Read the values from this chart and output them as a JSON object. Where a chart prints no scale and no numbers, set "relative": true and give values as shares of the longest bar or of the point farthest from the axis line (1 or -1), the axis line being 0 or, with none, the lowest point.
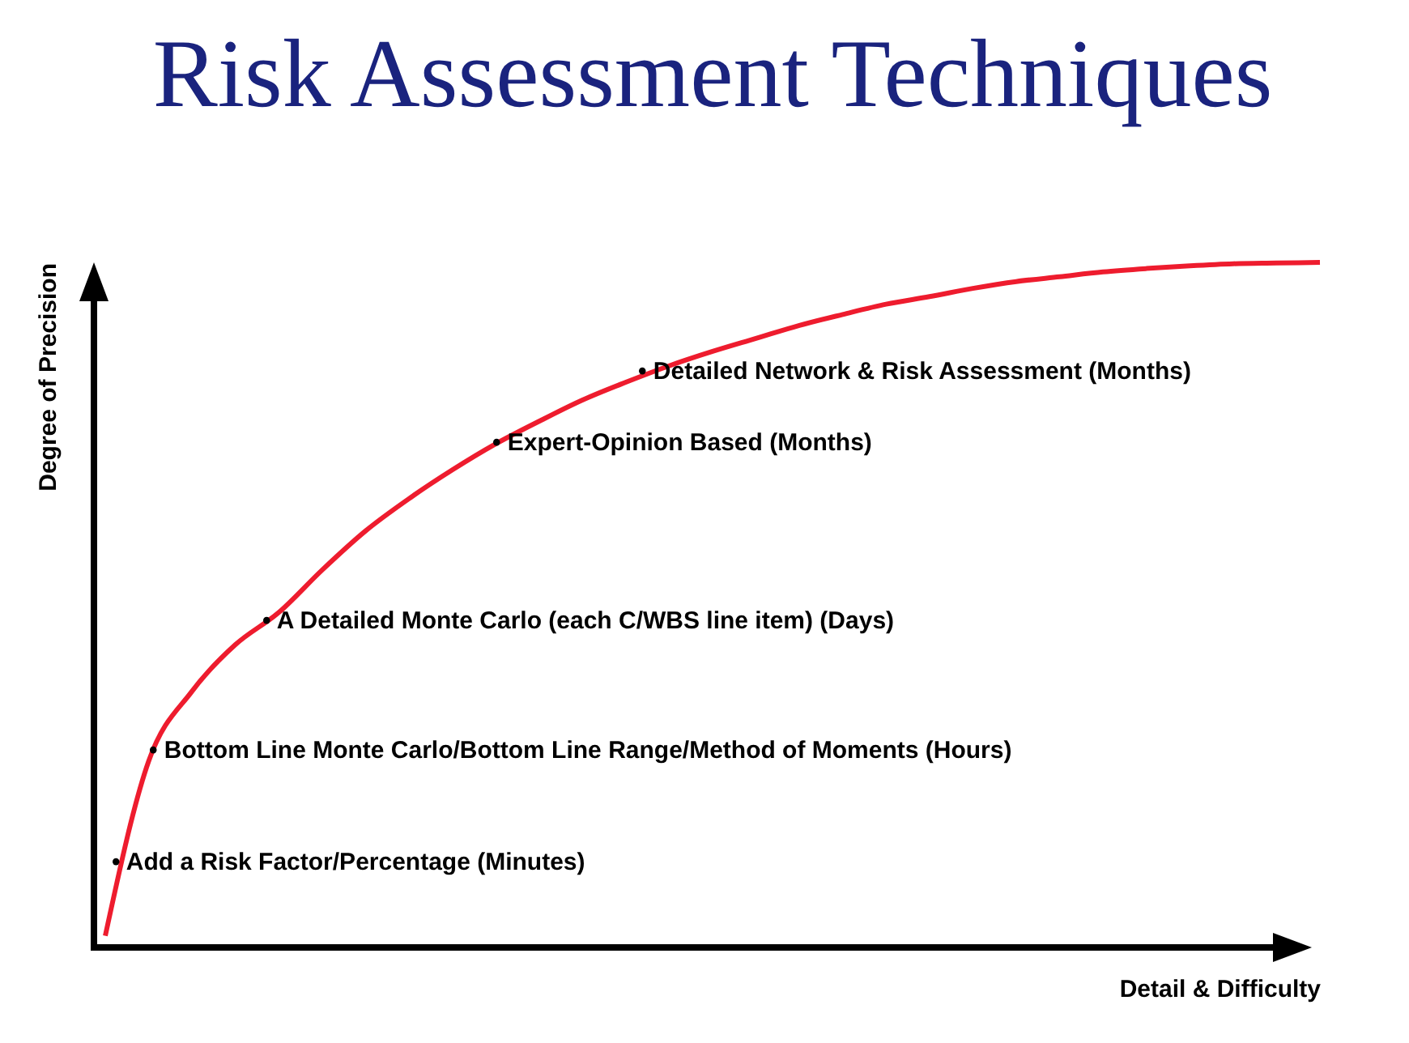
{
  "chart_data": {
    "type": "line",
    "title": "Risk Assessment Techniques",
    "xlabel": "Detail & Difficulty",
    "ylabel": "Degree of Precision",
    "relative": true,
    "categories": [
      null,
      null,
      null,
      null,
      null,
      null,
      null,
      null,
      null,
      null,
      null,
      null,
      null,
      null,
      null,
      null,
      null,
      null,
      null,
      null,
      null,
      null,
      null,
      null,
      null,
      null,
      null,
      null,
      null
    ],
    "series": [
      {
        "color": "#ee1c2e",
        "values": [
          0.017,
          0.272,
          0.374,
          0.442,
          0.489,
          0.551,
          0.608,
          0.655,
          0.697,
          0.735,
          0.768,
          0.799,
          0.825,
          0.849,
          0.87,
          0.889,
          0.908,
          0.924,
          0.939,
          0.95,
          0.962,
          0.972,
          0.979,
          0.986,
          0.991,
          0.995,
          0.998,
          0.999,
          1
        ]
      }
    ],
    "annotations": [
      "• Add a Risk Factor/Percentage  (Minutes)",
      "• Bottom Line Monte Carlo/Bottom Line Range/Method of Moments  (Hours)",
      "• A Detailed Monte Carlo (each C/WBS line item)    (Days)",
      "• Expert-Opinion Based (Months)",
      "• Detailed Network & Risk Assessment (Months)"
    ]
  }
}
